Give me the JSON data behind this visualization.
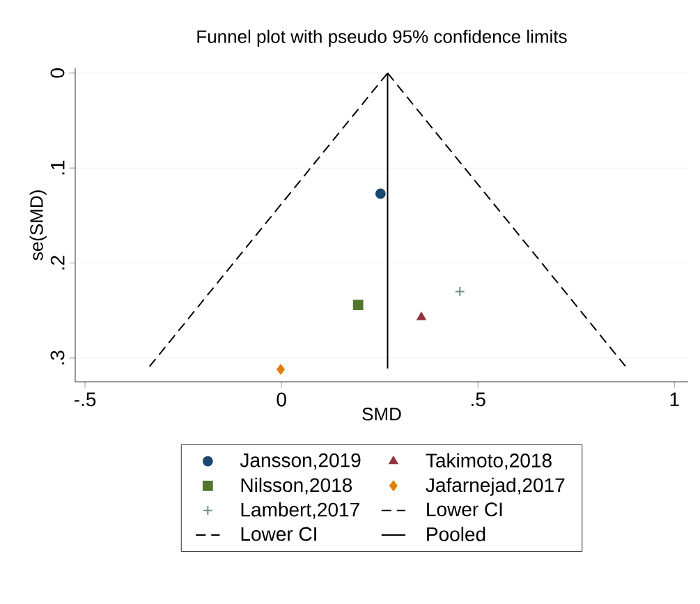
{
  "chart_data": {
    "type": "scatter",
    "title": "Funnel plot with pseudo 95% confidence limits",
    "xlabel": "SMD",
    "ylabel": "se(SMD)",
    "xlim": [
      -0.525,
      1.035
    ],
    "ylim": [
      0.325,
      -0.005
    ],
    "xticks": [
      {
        "value": -0.5,
        "label": "-.5"
      },
      0,
      {
        "value": 0.5,
        "label": ".5"
      },
      1
    ],
    "yticks": [
      0,
      {
        "value": 0.1,
        "label": ".1"
      },
      {
        "value": 0.2,
        "label": ".2"
      },
      {
        "value": 0.3,
        "label": ".3"
      }
    ],
    "grid": "y",
    "legend": "bottom",
    "series": [
      {
        "name": "Jansson,2019",
        "type": "scatter",
        "marker": "circle",
        "color": "#1a476f",
        "x": [
          0.252
        ],
        "values": [
          0.127
        ]
      },
      {
        "name": "Takimoto,2018",
        "type": "scatter",
        "marker": "triangle",
        "color": "#90353b",
        "x": [
          0.356
        ],
        "values": [
          0.257
        ]
      },
      {
        "name": "Nilsson,2018",
        "type": "scatter",
        "marker": "square",
        "color": "#55752f",
        "x": [
          0.195
        ],
        "values": [
          0.244
        ]
      },
      {
        "name": "Jafarnejad,2017",
        "type": "scatter",
        "marker": "diamond",
        "color": "#e37e00",
        "x": [
          -0.002
        ],
        "values": [
          0.312
        ]
      },
      {
        "name": "Lambert,2017",
        "type": "scatter",
        "marker": "cross",
        "color": "#6e8e84",
        "x": [
          0.454
        ],
        "values": [
          0.23
        ]
      },
      {
        "name": "Lower CI",
        "type": "line",
        "line_style": "dashed",
        "color": "#000000",
        "x": [
          -0.336,
          0.27
        ],
        "values": [
          0.309,
          0
        ]
      },
      {
        "name": "Lower CI",
        "type": "line",
        "line_style": "dashed",
        "color": "#000000",
        "x": [
          0.27,
          0.876
        ],
        "values": [
          0,
          0.309
        ]
      },
      {
        "name": "Pooled",
        "type": "line",
        "line_style": "solid",
        "color": "#000000",
        "x": [
          0.27,
          0.27
        ],
        "values": [
          0,
          0.311
        ]
      }
    ]
  }
}
